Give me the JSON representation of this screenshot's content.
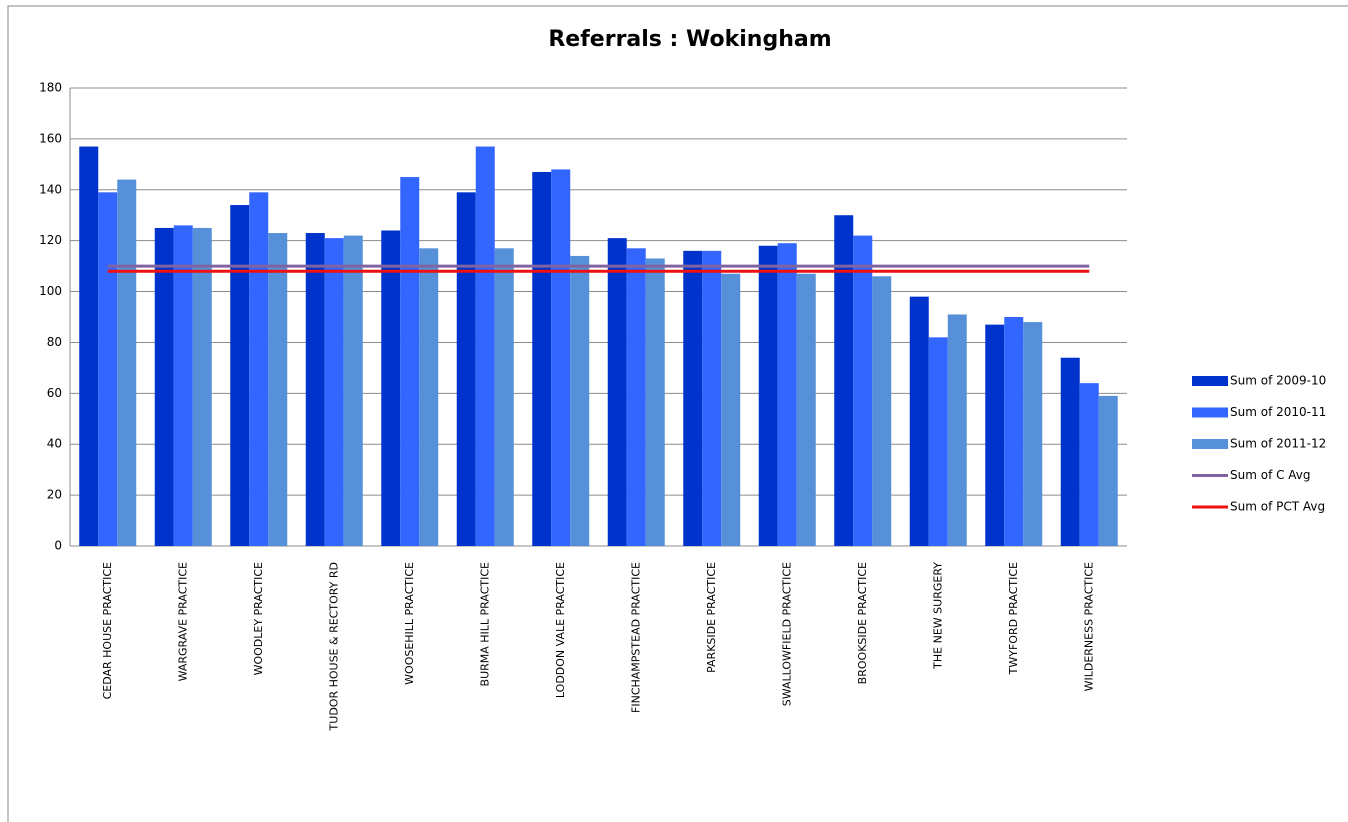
{
  "chart_data": {
    "type": "bar",
    "title": "Referrals : Wokingham",
    "categories": [
      "CEDAR HOUSE PRACTICE",
      "WARGRAVE PRACTICE",
      "WOODLEY PRACTICE",
      "TUDOR HOUSE & RECTORY RD",
      "WOOSEHILL PRACTICE",
      "BURMA HILL PRACTICE",
      "LODDON VALE PRACTICE",
      "FINCHAMPSTEAD PRACTICE",
      "PARKSIDE PRACTICE",
      "SWALLOWFIELD PRACTICE",
      "BROOKSIDE PRACTICE",
      "THE NEW SURGERY",
      "TWYFORD PRACTICE",
      "WILDERNESS PRACTICE"
    ],
    "series": [
      {
        "name": "Sum of 2009-10",
        "color": "#0033cc",
        "type": "bar",
        "values": [
          157,
          125,
          134,
          123,
          124,
          139,
          147,
          121,
          116,
          118,
          130,
          98,
          87,
          74
        ]
      },
      {
        "name": "Sum of 2010-11",
        "color": "#3366ff",
        "type": "bar",
        "values": [
          139,
          126,
          139,
          121,
          145,
          157,
          148,
          117,
          116,
          119,
          122,
          82,
          90,
          64
        ]
      },
      {
        "name": "Sum of 2011-12",
        "color": "#5590d9",
        "type": "bar",
        "values": [
          144,
          125,
          123,
          122,
          117,
          117,
          114,
          113,
          107,
          107,
          106,
          91,
          88,
          59
        ]
      },
      {
        "name": "Sum of C Avg",
        "color": "#8064a2",
        "type": "line",
        "values": [
          110,
          110,
          110,
          110,
          110,
          110,
          110,
          110,
          110,
          110,
          110,
          110,
          110,
          110
        ]
      },
      {
        "name": "Sum of PCT Avg",
        "color": "#ee1111",
        "type": "line",
        "values": [
          108,
          108,
          108,
          108,
          108,
          108,
          108,
          108,
          108,
          108,
          108,
          108,
          108,
          108
        ]
      }
    ],
    "ylim": [
      0,
      180
    ],
    "yticks": [
      0,
      20,
      40,
      60,
      80,
      100,
      120,
      140,
      160,
      180
    ],
    "grid": true,
    "legend": "right"
  }
}
